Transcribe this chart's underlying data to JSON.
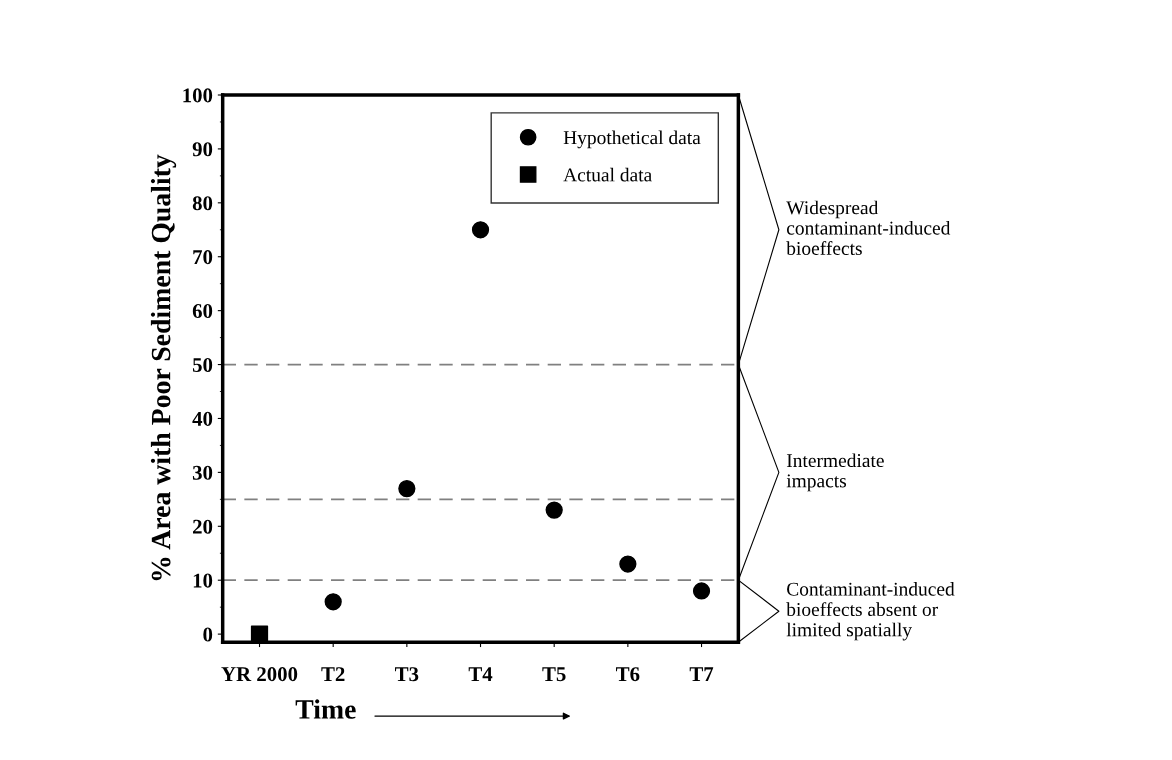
{
  "chart_data": {
    "type": "scatter",
    "xlabel": "Time",
    "ylabel": "% Area with Poor Sediment Quality",
    "categories": [
      "YR 2000",
      "T2",
      "T3",
      "T4",
      "T5",
      "T6",
      "T7"
    ],
    "series": [
      {
        "name": "Hypothetical data",
        "color": "#000000",
        "marker": "circle",
        "values": [
          null,
          6,
          27,
          75,
          23,
          13,
          8
        ]
      },
      {
        "name": "Actual data",
        "color": "#000000",
        "marker": "square",
        "values": [
          0,
          null,
          null,
          null,
          null,
          null,
          null
        ]
      }
    ],
    "ylim": [
      -1.5,
      100
    ],
    "yticks": [
      0,
      10,
      20,
      30,
      40,
      50,
      60,
      70,
      80,
      90,
      100
    ],
    "ref_lines": [
      {
        "axis": "y",
        "value": 10,
        "color": "#808080",
        "line_style": "dashed"
      },
      {
        "axis": "y",
        "value": 25,
        "color": "#808080",
        "line_style": "dashed"
      },
      {
        "axis": "y",
        "value": 50,
        "color": "#808080",
        "line_style": "dashed"
      }
    ],
    "annotations": [
      "Contaminant-induced\nbioeffects absent or\nlimited spatially",
      "Intermediate\nimpacts",
      "Widespread\ncontaminant-induced\nbioeffects"
    ],
    "legend": "top right",
    "grid": false
  }
}
